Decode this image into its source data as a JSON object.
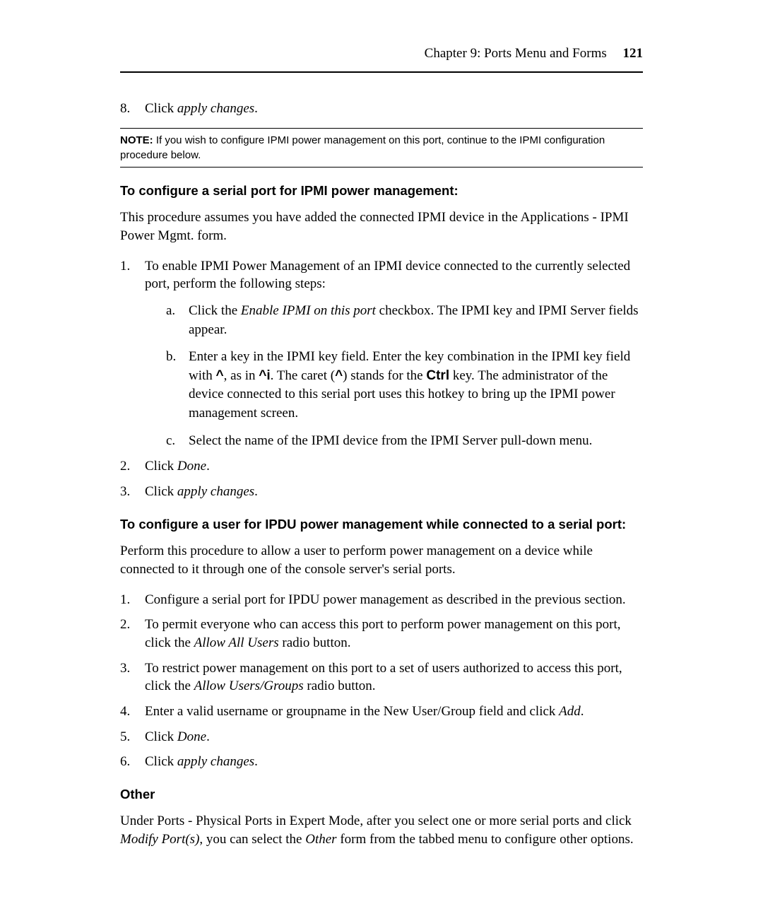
{
  "header": {
    "chapter": "Chapter 9: Ports Menu and Forms",
    "page": "121"
  },
  "step8": {
    "num": "8.",
    "text_prefix": "Click ",
    "text_italic": "apply changes",
    "text_suffix": "."
  },
  "note": {
    "label": "NOTE:",
    "text": " If you wish to configure IPMI power management on this port, continue to the IPMI configuration procedure below."
  },
  "section1": {
    "heading": "To configure a serial port for IPMI power management:",
    "intro": "This procedure assumes you have added the connected IPMI device in the Applications - IPMI Power Mgmt. form.",
    "item1": {
      "num": "1.",
      "text": "To enable IPMI Power Management of an IPMI device connected to the currently selected port, perform the following steps:",
      "a": {
        "letter": "a.",
        "prefix": "Click the ",
        "italic": "Enable IPMI on this port",
        "suffix": " checkbox. The IPMI key and IPMI Server fields appear."
      },
      "b": {
        "letter": "b.",
        "p1": "Enter a key in the IPMI key field. Enter the key combination in the IPMI key field with ",
        "caret1": "^",
        "p2": ", as in ",
        "caret2": "^i",
        "p3": ". The caret (",
        "caret3": "^",
        "p4": ") stands for the ",
        "ctrl": "Ctrl",
        "p5": " key. The administrator of the device connected to this serial port uses this hotkey to bring up the IPMI power management screen."
      },
      "c": {
        "letter": "c.",
        "text": "Select the name of the IPMI device from the IPMI Server pull-down menu."
      }
    },
    "item2": {
      "num": "2.",
      "prefix": "Click ",
      "italic": "Done",
      "suffix": "."
    },
    "item3": {
      "num": "3.",
      "prefix": "Click ",
      "italic": "apply changes",
      "suffix": "."
    }
  },
  "section2": {
    "heading": "To configure a user for IPDU power management while connected to a serial port:",
    "intro": "Perform this procedure to allow a user to perform power management on a device while connected to it through one of the console server's serial ports.",
    "item1": {
      "num": "1.",
      "text": "Configure a serial port for IPDU power management as described in the previous section."
    },
    "item2": {
      "num": "2.",
      "prefix": "To permit everyone who can access this port to perform power management on this port, click the ",
      "italic": "Allow All Users",
      "suffix": " radio button."
    },
    "item3": {
      "num": "3.",
      "prefix": "To restrict power management on this port to a set of users authorized to access this port, click the ",
      "italic": "Allow Users/Groups",
      "suffix": " radio button."
    },
    "item4": {
      "num": "4.",
      "prefix": "Enter a valid username or groupname in the New User/Group field and click ",
      "italic": "Add",
      "suffix": "."
    },
    "item5": {
      "num": "5.",
      "prefix": "Click ",
      "italic": "Done",
      "suffix": "."
    },
    "item6": {
      "num": "6.",
      "prefix": "Click ",
      "italic": "apply changes",
      "suffix": "."
    }
  },
  "section3": {
    "heading": "Other",
    "para": {
      "p1": "Under Ports - Physical Ports in Expert Mode, after you select one or more serial ports and click ",
      "i1": "Modify Port(s)",
      "p2": ", you can select the ",
      "i2": "Other",
      "p3": " form from the tabbed menu to configure other options."
    }
  }
}
